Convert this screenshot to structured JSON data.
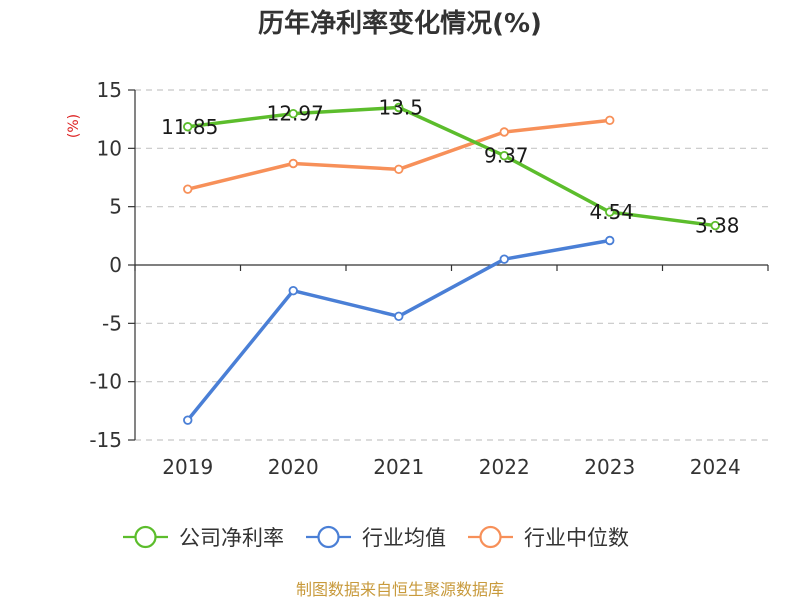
{
  "chart_data": {
    "type": "line",
    "title": "历年净利率变化情况(%)",
    "ylabel": "(%)",
    "xlabel": "",
    "categories": [
      "2019",
      "2020",
      "2021",
      "2022",
      "2023",
      "2024"
    ],
    "ylim": [
      -15,
      15
    ],
    "yticks": [
      15,
      10,
      5,
      0,
      -5,
      -10,
      -15
    ],
    "grid": true,
    "legend_position": "bottom",
    "series": [
      {
        "name": "公司净利率",
        "color": "#5cbd2c",
        "values": [
          11.85,
          12.97,
          13.5,
          9.37,
          4.54,
          3.38
        ],
        "data_labels": [
          "11.85",
          "12.97",
          "13.5",
          "9.37",
          "4.54",
          "3.38"
        ]
      },
      {
        "name": "行业均值",
        "color": "#4a7fd6",
        "values": [
          -13.3,
          -2.2,
          -4.4,
          0.5,
          2.1,
          null
        ],
        "data_labels": []
      },
      {
        "name": "行业中位数",
        "color": "#f79059",
        "values": [
          6.5,
          8.7,
          8.2,
          11.4,
          12.4,
          null
        ],
        "data_labels": []
      }
    ]
  },
  "ylabel_color": "#dd2222",
  "source_note": "制图数据来自恒生聚源数据库",
  "source_note_color": "#c89a3c"
}
